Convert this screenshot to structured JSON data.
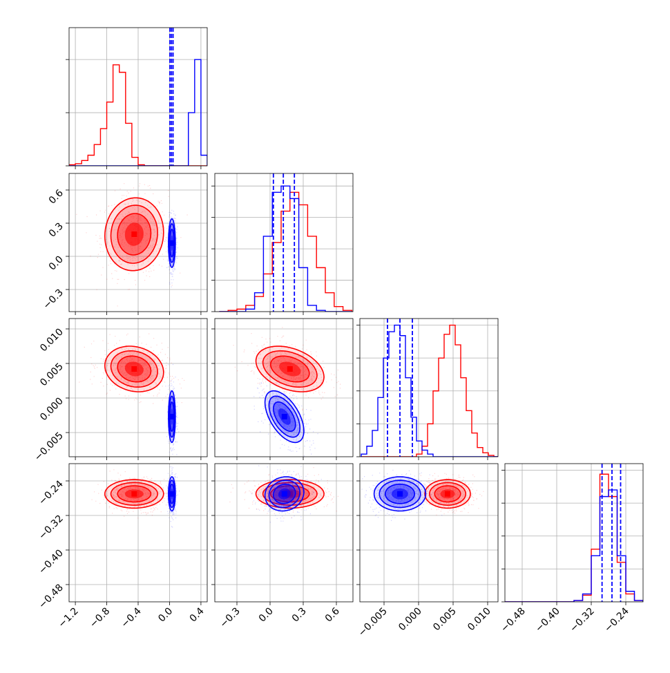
{
  "chart_data": {
    "type": "corner",
    "n_params": 4,
    "series": [
      {
        "name": "",
        "color": "#ff0000"
      },
      {
        "name": "",
        "color": "#0000ff"
      }
    ],
    "quantile_color": "#0000ff",
    "grid": true,
    "params": [
      {
        "range": [
          -1.28,
          0.48
        ],
        "ticks": [
          -1.2,
          -0.8,
          -0.4,
          0.0,
          0.4
        ],
        "tick_labels": [
          "−1.2",
          "−0.8",
          "−0.4",
          "0.0",
          "0.4"
        ],
        "centers": [
          -1.24,
          -1.16,
          -1.08,
          -1.0,
          -0.92,
          -0.84,
          -0.76,
          -0.68,
          -0.6,
          -0.52,
          -0.44,
          -0.36,
          -0.28,
          -0.2,
          -0.12,
          -0.04,
          0.04,
          0.12,
          0.2,
          0.28,
          0.36,
          0.44
        ],
        "hist": [
          [
            0.01,
            0.02,
            0.05,
            0.1,
            0.2,
            0.35,
            0.6,
            0.95,
            0.88,
            0.4,
            0.08,
            0.01,
            0.0,
            0.0,
            0.0,
            0.0,
            0.0,
            0.0,
            0.0,
            0.0,
            0.0,
            0.0
          ],
          [
            0.0,
            0.0,
            0.0,
            0.0,
            0.0,
            0.0,
            0.0,
            0.0,
            0.0,
            0.0,
            0.0,
            0.0,
            0.0,
            0.0,
            0.0,
            0.0,
            0.0,
            0.0,
            0.0,
            0.5,
            1.0,
            0.1
          ]
        ],
        "quantiles": [
          0.005,
          0.025,
          0.045
        ],
        "ylim": [
          0,
          1.3
        ],
        "hist_ticks": [
          0,
          0.5,
          1.0
        ]
      },
      {
        "range": [
          -0.5,
          0.75
        ],
        "ticks": [
          -0.3,
          0.0,
          0.3,
          0.6
        ],
        "tick_labels": [
          "−0.3",
          "0.0",
          "0.3",
          "0.6"
        ],
        "centers": [
          -0.42,
          -0.34,
          -0.26,
          -0.18,
          -0.1,
          -0.02,
          0.06,
          0.14,
          0.22,
          0.3,
          0.38,
          0.46,
          0.54,
          0.62,
          0.7
        ],
        "hist": [
          [
            0.0,
            0.01,
            0.02,
            0.05,
            0.12,
            0.3,
            0.55,
            0.8,
            0.95,
            0.85,
            0.6,
            0.35,
            0.15,
            0.04,
            0.01
          ],
          [
            0.0,
            0.0,
            0.0,
            0.02,
            0.15,
            0.6,
            0.95,
            1.0,
            0.9,
            0.35,
            0.05,
            0.01,
            0.0,
            0.0,
            0.0
          ]
        ],
        "quantiles": [
          0.03,
          0.12,
          0.22
        ],
        "ylim": [
          0,
          1.1
        ],
        "hist_ticks": [
          0,
          0.25,
          0.5,
          0.75,
          1.0
        ]
      },
      {
        "range": [
          -0.0085,
          0.0115
        ],
        "ticks": [
          -0.005,
          0.0,
          0.005,
          0.01
        ],
        "tick_labels": [
          "−0.005",
          "0.000",
          "0.005",
          "0.010"
        ],
        "centers": [
          -0.0079,
          -0.0071,
          -0.0063,
          -0.0055,
          -0.0047,
          -0.0039,
          -0.0031,
          -0.0023,
          -0.0015,
          -0.0007,
          0.0001,
          0.0009,
          0.0017,
          0.0025,
          0.0033,
          0.0041,
          0.0049,
          0.0057,
          0.0065,
          0.0073,
          0.0081,
          0.0089,
          0.0097,
          0.0105,
          0.0113
        ],
        "hist": [
          [
            0.0,
            0.0,
            0.0,
            0.0,
            0.0,
            0.0,
            0.0,
            0.0,
            0.0,
            0.0,
            0.02,
            0.08,
            0.25,
            0.5,
            0.75,
            0.93,
            1.0,
            0.85,
            0.6,
            0.35,
            0.18,
            0.07,
            0.03,
            0.01,
            0.0
          ],
          [
            0.02,
            0.08,
            0.2,
            0.45,
            0.75,
            0.95,
            1.0,
            0.92,
            0.6,
            0.3,
            0.12,
            0.05,
            0.02,
            0.0,
            0.0,
            0.0,
            0.0,
            0.0,
            0.0,
            0.0,
            0.0,
            0.0,
            0.0,
            0.0,
            0.0
          ]
        ],
        "quantiles": [
          -0.0045,
          -0.0027,
          -0.0009
        ],
        "ylim": [
          0,
          1.05
        ],
        "hist_ticks": [
          0,
          0.25,
          0.5,
          0.75,
          1.0
        ]
      },
      {
        "range": [
          -0.52,
          -0.2
        ],
        "ticks": [
          -0.48,
          -0.4,
          -0.32,
          -0.24
        ],
        "tick_labels": [
          "−0.48",
          "−0.40",
          "−0.32",
          "−0.24"
        ],
        "centers": [
          -0.51,
          -0.49,
          -0.47,
          -0.45,
          -0.43,
          -0.41,
          -0.39,
          -0.37,
          -0.35,
          -0.33,
          -0.31,
          -0.29,
          -0.27,
          -0.25,
          -0.23,
          -0.21
        ],
        "hist": [
          [
            0.0,
            0.0,
            0.0,
            0.0,
            0.0,
            0.0,
            0.0,
            0.0,
            0.01,
            0.05,
            0.4,
            0.97,
            0.8,
            0.3,
            0.06,
            0.01
          ],
          [
            0.0,
            0.0,
            0.0,
            0.0,
            0.0,
            0.0,
            0.0,
            0.0,
            0.01,
            0.06,
            0.35,
            0.8,
            0.85,
            0.35,
            0.08,
            0.01
          ]
        ],
        "quantiles": [
          -0.295,
          -0.272,
          -0.252
        ],
        "ylim": [
          0,
          1.05
        ],
        "hist_ticks": [
          0,
          0.25,
          0.5,
          0.75,
          1.0
        ]
      }
    ],
    "pairs": [
      {
        "row": 1,
        "col": 0,
        "blobs": [
          {
            "series": 0,
            "cx": -0.45,
            "cy": 0.2,
            "sx": 0.17,
            "sy": 0.15,
            "rho": 0.05
          },
          {
            "series": 1,
            "cx": 0.03,
            "cy": 0.12,
            "sx": 0.02,
            "sy": 0.1,
            "rho": 0.0
          }
        ]
      },
      {
        "row": 2,
        "col": 0,
        "blobs": [
          {
            "series": 0,
            "cx": -0.45,
            "cy": 0.0042,
            "sx": 0.17,
            "sy": 0.0015,
            "rho": -0.15
          },
          {
            "series": 1,
            "cx": 0.03,
            "cy": -0.0027,
            "sx": 0.02,
            "sy": 0.0017,
            "rho": 0.0
          }
        ]
      },
      {
        "row": 2,
        "col": 1,
        "blobs": [
          {
            "series": 0,
            "cx": 0.18,
            "cy": 0.0042,
            "sx": 0.14,
            "sy": 0.0015,
            "rho": -0.35
          },
          {
            "series": 1,
            "cx": 0.13,
            "cy": -0.0027,
            "sx": 0.08,
            "sy": 0.0017,
            "rho": -0.55
          }
        ]
      },
      {
        "row": 3,
        "col": 0,
        "blobs": [
          {
            "series": 0,
            "cx": -0.45,
            "cy": -0.27,
            "sx": 0.17,
            "sy": 0.015,
            "rho": 0.0
          },
          {
            "series": 1,
            "cx": 0.03,
            "cy": -0.27,
            "sx": 0.02,
            "sy": 0.018,
            "rho": 0.0
          }
        ]
      },
      {
        "row": 3,
        "col": 1,
        "blobs": [
          {
            "series": 0,
            "cx": 0.18,
            "cy": -0.27,
            "sx": 0.14,
            "sy": 0.015,
            "rho": 0.0
          },
          {
            "series": 1,
            "cx": 0.13,
            "cy": -0.27,
            "sx": 0.08,
            "sy": 0.018,
            "rho": 0.1
          }
        ]
      },
      {
        "row": 3,
        "col": 2,
        "blobs": [
          {
            "series": 0,
            "cx": 0.0042,
            "cy": -0.27,
            "sx": 0.0015,
            "sy": 0.015,
            "rho": 0.0
          },
          {
            "series": 1,
            "cx": -0.0027,
            "cy": -0.27,
            "sx": 0.0017,
            "sy": 0.018,
            "rho": 0.0
          }
        ]
      }
    ]
  }
}
